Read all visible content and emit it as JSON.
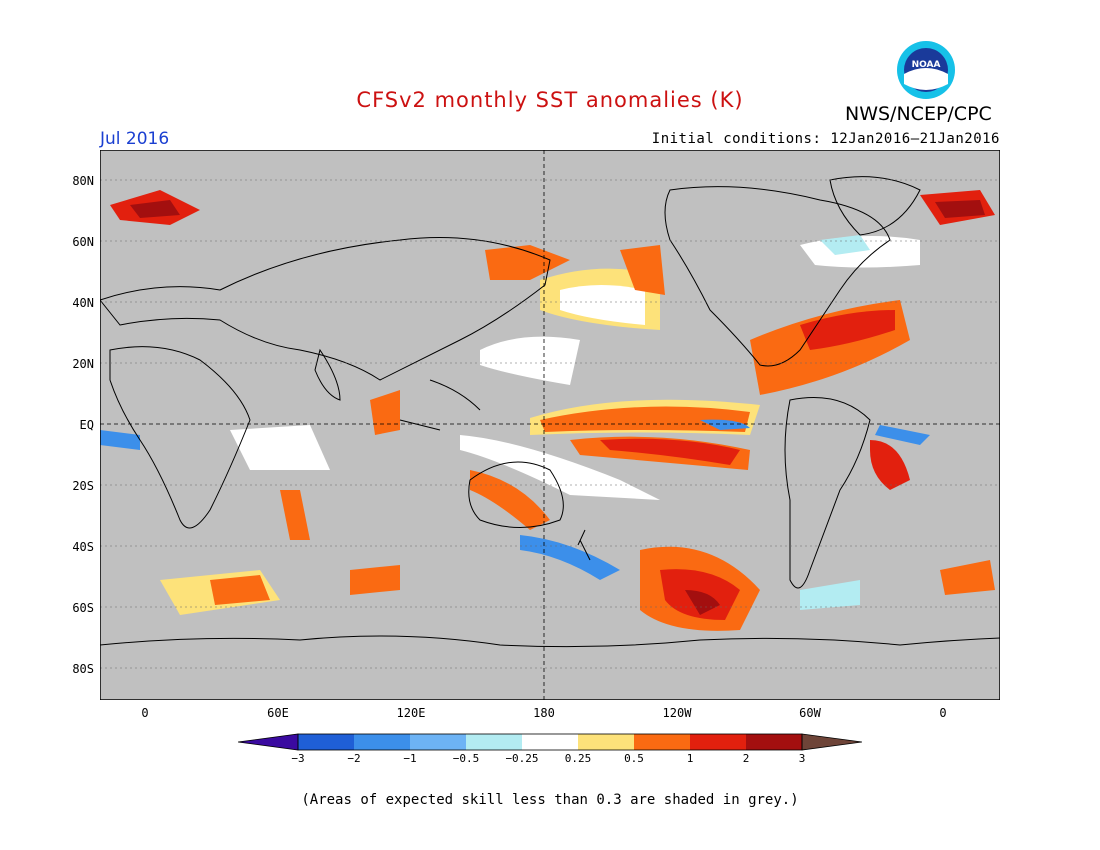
{
  "title": "CFSv2 monthly SST anomalies (K)",
  "agency": "NWS/NCEP/CPC",
  "logo_text": "NOAA",
  "month_label": "Jul 2016",
  "initial_conditions": "Initial conditions: 12Jan2016–21Jan2016",
  "footnote": "(Areas of expected skill less than 0.3 are shaded in grey.)",
  "lat_labels": [
    "80N",
    "60N",
    "40N",
    "20N",
    "EQ",
    "20S",
    "40S",
    "60S",
    "80S"
  ],
  "lon_labels": [
    "0",
    "60E",
    "120E",
    "180",
    "120W",
    "60W",
    "0"
  ],
  "colorbar": {
    "ticks": [
      "−3",
      "−2",
      "−1",
      "−0.5",
      "−0.25",
      "0.25",
      "0.5",
      "1",
      "2",
      "3"
    ],
    "colors": [
      "#3a0aa0",
      "#1f5fd6",
      "#3c8fea",
      "#6db3f5",
      "#b3ecf2",
      "#ffffff",
      "#fde27a",
      "#fa6a12",
      "#e2200e",
      "#a30f0f",
      "#6e4438"
    ]
  },
  "colors": {
    "ocean_grey": "#c0c0c0",
    "title_red": "#cc1111",
    "month_blue": "#1a3fd1"
  }
}
